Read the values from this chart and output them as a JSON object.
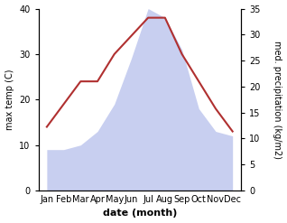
{
  "months": [
    "Jan",
    "Feb",
    "Mar",
    "Apr",
    "May",
    "Jun",
    "Jul",
    "Aug",
    "Sep",
    "Oct",
    "Nov",
    "Dec"
  ],
  "temp": [
    14,
    19,
    24,
    24,
    30,
    34,
    38,
    38,
    30,
    24,
    18,
    13
  ],
  "precip": [
    9,
    9,
    10,
    13,
    19,
    29,
    40,
    38,
    31,
    18,
    13,
    12
  ],
  "temp_color": "#b03030",
  "precip_color_fill": "#c8cff0",
  "left_ylim": [
    0,
    40
  ],
  "left_yticks": [
    0,
    10,
    20,
    30,
    40
  ],
  "right_ylim": [
    0,
    35
  ],
  "right_yticks": [
    0,
    5,
    10,
    15,
    20,
    25,
    30,
    35
  ],
  "xlabel": "date (month)",
  "ylabel_left": "max temp (C)",
  "ylabel_right": "med. precipitation (kg/m2)",
  "figsize": [
    3.18,
    2.47
  ],
  "dpi": 100
}
